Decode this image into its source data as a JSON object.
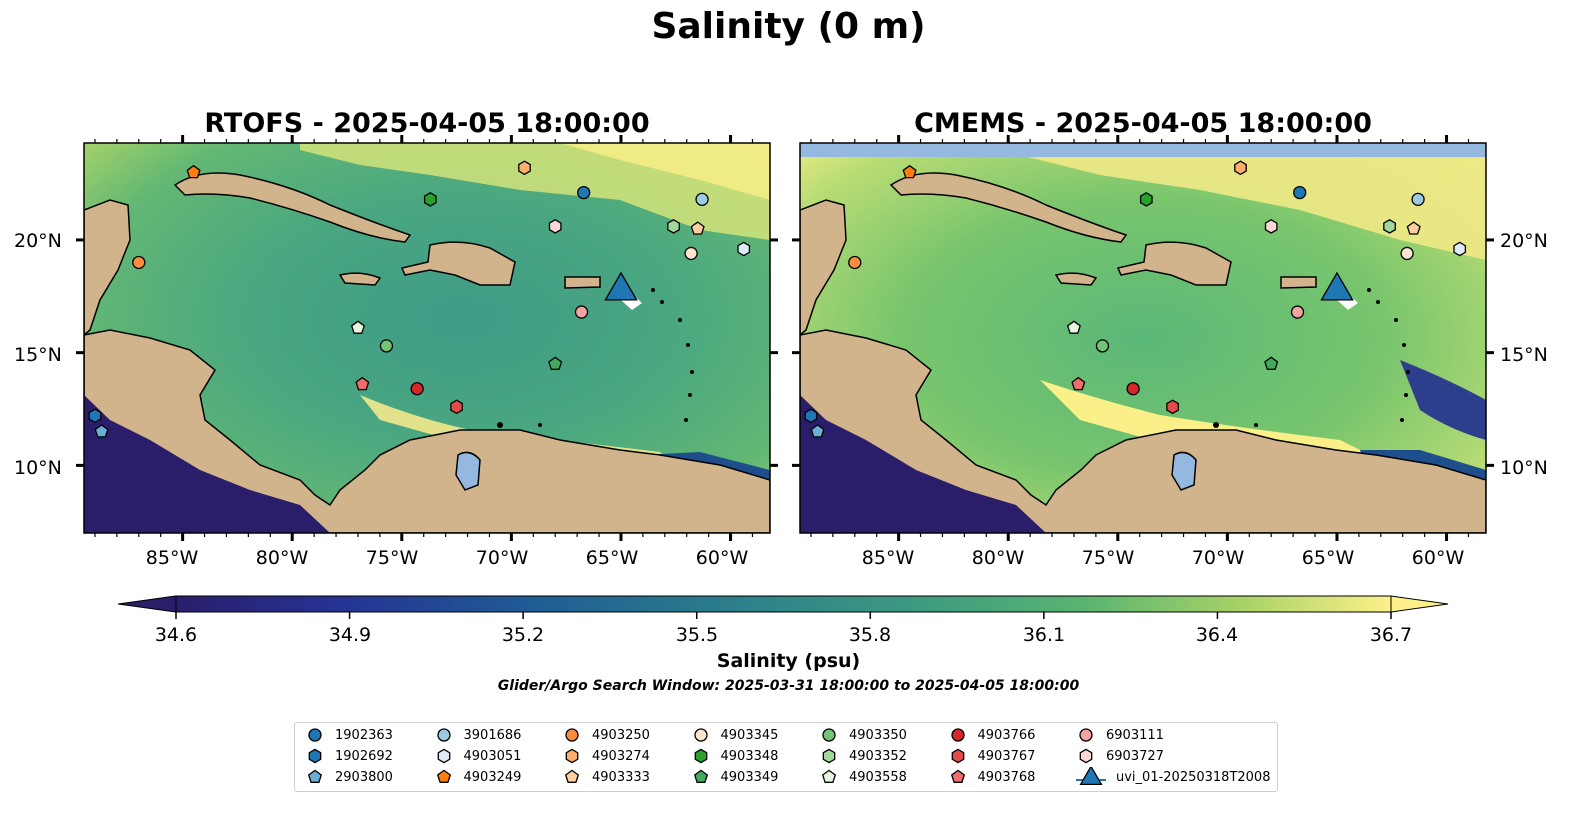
{
  "figure": {
    "title": "Salinity (0 m)",
    "colorbar_label": "Salinity (psu)",
    "search_window_note": "Glider/Argo Search Window: 2025-03-31 18:00:00 to 2025-04-05 18:00:00",
    "colorbar_ticks": [
      "34.6",
      "34.9",
      "35.2",
      "35.5",
      "35.8",
      "36.1",
      "36.4",
      "36.7"
    ],
    "lat_ticks": [
      "20°N",
      "15°N",
      "10°N"
    ],
    "lon_ticks": [
      "85°W",
      "80°W",
      "75°W",
      "70°W",
      "65°W",
      "60°W"
    ]
  },
  "panels": [
    {
      "title": "RTOFS - 2025-04-05 18:00:00"
    },
    {
      "title": "CMEMS - 2025-04-05 18:00:00"
    }
  ],
  "colors": {
    "land": "#d2b48c",
    "ocean_low": "#2a1e6b",
    "ocean_mid": "#3a9a8a",
    "ocean_high": "#fdf08a",
    "lakes": "#94b8e0",
    "no_data_band": "#94b8e0"
  },
  "legend": [
    {
      "label": "1902363",
      "marker": "circle",
      "color": "#1f77b4"
    },
    {
      "label": "1902692",
      "marker": "hexagon",
      "color": "#1f77b4"
    },
    {
      "label": "2903800",
      "marker": "pentagon",
      "color": "#6baed6"
    },
    {
      "label": "3901686",
      "marker": "circle",
      "color": "#9ecae1"
    },
    {
      "label": "4903051",
      "marker": "hexagon",
      "color": "#deebf7"
    },
    {
      "label": "4903249",
      "marker": "pentagon",
      "color": "#ff7f0e"
    },
    {
      "label": "4903250",
      "marker": "circle",
      "color": "#fd8d3c"
    },
    {
      "label": "4903274",
      "marker": "hexagon",
      "color": "#fdae6b"
    },
    {
      "label": "4903333",
      "marker": "pentagon",
      "color": "#fdd0a2"
    },
    {
      "label": "4903345",
      "marker": "circle",
      "color": "#fee6ce"
    },
    {
      "label": "4903348",
      "marker": "hexagon",
      "color": "#2ca02c"
    },
    {
      "label": "4903349",
      "marker": "pentagon",
      "color": "#41ab5d"
    },
    {
      "label": "4903350",
      "marker": "circle",
      "color": "#74c476"
    },
    {
      "label": "4903352",
      "marker": "hexagon",
      "color": "#a1d99b"
    },
    {
      "label": "4903558",
      "marker": "pentagon",
      "color": "#e5f5e0"
    },
    {
      "label": "4903766",
      "marker": "circle",
      "color": "#d62728"
    },
    {
      "label": "4903767",
      "marker": "hexagon",
      "color": "#e34a4a"
    },
    {
      "label": "4903768",
      "marker": "pentagon",
      "color": "#f16d6d"
    },
    {
      "label": "6903111",
      "marker": "circle",
      "color": "#f4a3a3"
    },
    {
      "label": "6903727",
      "marker": "hexagon",
      "color": "#fcd7d7"
    },
    {
      "label": "uvi_01-20250318T2008",
      "marker": "triangle",
      "color": "#1f77b4"
    }
  ],
  "markers": [
    {
      "id": "4903249",
      "lon": -84.5,
      "lat": 23.0
    },
    {
      "id": "4903274",
      "lon": -69.4,
      "lat": 23.2
    },
    {
      "id": "1902363",
      "lon": -66.7,
      "lat": 22.1
    },
    {
      "id": "3901686",
      "lon": -61.3,
      "lat": 21.8
    },
    {
      "id": "4903348",
      "lon": -73.7,
      "lat": 21.8
    },
    {
      "id": "6903727",
      "lon": -68.0,
      "lat": 20.6
    },
    {
      "id": "4903352",
      "lon": -62.6,
      "lat": 20.6
    },
    {
      "id": "4903333",
      "lon": -61.5,
      "lat": 20.5
    },
    {
      "id": "4903345",
      "lon": -61.8,
      "lat": 19.4
    },
    {
      "id": "4903051",
      "lon": -59.4,
      "lat": 19.6
    },
    {
      "id": "4903250",
      "lon": -87.0,
      "lat": 19.0
    },
    {
      "id": "uvi_01-20250318T2008",
      "lon": -65.0,
      "lat": 17.9
    },
    {
      "id": "6903111",
      "lon": -66.8,
      "lat": 16.8
    },
    {
      "id": "4903558",
      "lon": -77.0,
      "lat": 16.1
    },
    {
      "id": "4903350",
      "lon": -75.7,
      "lat": 15.3
    },
    {
      "id": "4903349",
      "lon": -68.0,
      "lat": 14.5
    },
    {
      "id": "4903768",
      "lon": -76.8,
      "lat": 13.6
    },
    {
      "id": "4903766",
      "lon": -74.3,
      "lat": 13.4
    },
    {
      "id": "4903767",
      "lon": -72.5,
      "lat": 12.6
    },
    {
      "id": "1902692",
      "lon": -89.0,
      "lat": 12.2
    },
    {
      "id": "2903800",
      "lon": -88.7,
      "lat": 11.5
    }
  ]
}
